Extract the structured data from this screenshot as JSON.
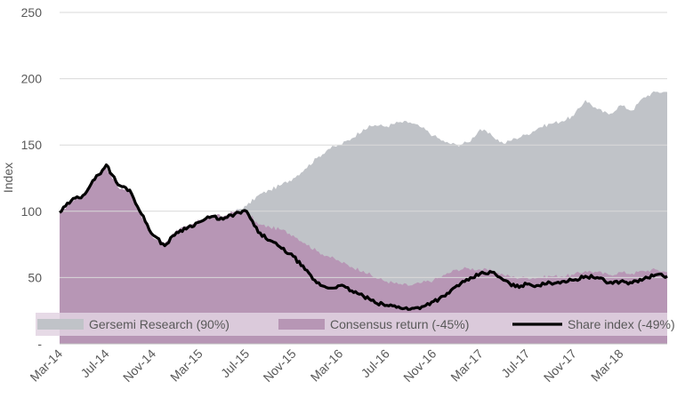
{
  "chart_data": {
    "type": "area",
    "ylabel": "Index",
    "ylim": [
      0,
      250
    ],
    "yticks": [
      "-",
      "50",
      "100",
      "150",
      "200",
      "250"
    ],
    "ytick_values": [
      0,
      50,
      100,
      150,
      200,
      250
    ],
    "xlabels": [
      "Mar-14",
      "Jul-14",
      "Nov-14",
      "Mar-15",
      "Jul-15",
      "Nov-15",
      "Mar-16",
      "Jul-16",
      "Nov-16",
      "Mar-17",
      "Jul-17",
      "Nov-17",
      "Mar-18"
    ],
    "x_start": "2014-03",
    "x_end": "2018-07",
    "grid": true,
    "legend_position": "bottom-overlay",
    "colors": {
      "gersemi": "#c0c3c8",
      "consensus": "#b796b5",
      "share": "#000000",
      "grid": "#d9d9d9",
      "legend_band": "#e2d4e2"
    },
    "series": [
      {
        "name": "Gersemi Research (90%)",
        "kind": "area",
        "color": "#c0c3c8",
        "points": [
          [
            "2014-03",
            98
          ],
          [
            "2014-04",
            108
          ],
          [
            "2014-05",
            112
          ],
          [
            "2014-06",
            125
          ],
          [
            "2014-07",
            133
          ],
          [
            "2014-08",
            118
          ],
          [
            "2014-09",
            115
          ],
          [
            "2014-10",
            96
          ],
          [
            "2014-11",
            80
          ],
          [
            "2014-12",
            76
          ],
          [
            "2015-01",
            86
          ],
          [
            "2015-02",
            88
          ],
          [
            "2015-03",
            93
          ],
          [
            "2015-04",
            97
          ],
          [
            "2015-05",
            96
          ],
          [
            "2015-06",
            100
          ],
          [
            "2015-07",
            104
          ],
          [
            "2015-08",
            112
          ],
          [
            "2015-09",
            116
          ],
          [
            "2015-10",
            120
          ],
          [
            "2015-11",
            125
          ],
          [
            "2015-12",
            132
          ],
          [
            "2016-01",
            140
          ],
          [
            "2016-02",
            147
          ],
          [
            "2016-03",
            150
          ],
          [
            "2016-04",
            155
          ],
          [
            "2016-05",
            162
          ],
          [
            "2016-06",
            165
          ],
          [
            "2016-07",
            164
          ],
          [
            "2016-08",
            167
          ],
          [
            "2016-09",
            167
          ],
          [
            "2016-10",
            163
          ],
          [
            "2016-11",
            157
          ],
          [
            "2016-12",
            152
          ],
          [
            "2017-01",
            150
          ],
          [
            "2017-02",
            152
          ],
          [
            "2017-03",
            162
          ],
          [
            "2017-04",
            157
          ],
          [
            "2017-05",
            151
          ],
          [
            "2017-06",
            155
          ],
          [
            "2017-07",
            158
          ],
          [
            "2017-08",
            163
          ],
          [
            "2017-09",
            166
          ],
          [
            "2017-10",
            168
          ],
          [
            "2017-11",
            172
          ],
          [
            "2017-12",
            184
          ],
          [
            "2018-01",
            177
          ],
          [
            "2018-02",
            173
          ],
          [
            "2018-03",
            180
          ],
          [
            "2018-04",
            176
          ],
          [
            "2018-05",
            186
          ],
          [
            "2018-06",
            190
          ],
          [
            "2018-07",
            190
          ]
        ]
      },
      {
        "name": "Consensus return (-45%)",
        "kind": "area",
        "color": "#b796b5",
        "points": [
          [
            "2014-03",
            98
          ],
          [
            "2014-04",
            108
          ],
          [
            "2014-05",
            112
          ],
          [
            "2014-06",
            125
          ],
          [
            "2014-07",
            133
          ],
          [
            "2014-08",
            118
          ],
          [
            "2014-09",
            115
          ],
          [
            "2014-10",
            96
          ],
          [
            "2014-11",
            80
          ],
          [
            "2014-12",
            76
          ],
          [
            "2015-01",
            86
          ],
          [
            "2015-02",
            88
          ],
          [
            "2015-03",
            93
          ],
          [
            "2015-04",
            97
          ],
          [
            "2015-05",
            96
          ],
          [
            "2015-06",
            100
          ],
          [
            "2015-07",
            100
          ],
          [
            "2015-08",
            90
          ],
          [
            "2015-09",
            88
          ],
          [
            "2015-10",
            86
          ],
          [
            "2015-11",
            82
          ],
          [
            "2015-12",
            76
          ],
          [
            "2016-01",
            70
          ],
          [
            "2016-02",
            66
          ],
          [
            "2016-03",
            62
          ],
          [
            "2016-04",
            58
          ],
          [
            "2016-05",
            55
          ],
          [
            "2016-06",
            50
          ],
          [
            "2016-07",
            47
          ],
          [
            "2016-08",
            45
          ],
          [
            "2016-09",
            44
          ],
          [
            "2016-10",
            46
          ],
          [
            "2016-11",
            48
          ],
          [
            "2016-12",
            52
          ],
          [
            "2017-01",
            56
          ],
          [
            "2017-02",
            57
          ],
          [
            "2017-03",
            56
          ],
          [
            "2017-04",
            55
          ],
          [
            "2017-05",
            52
          ],
          [
            "2017-06",
            50
          ],
          [
            "2017-07",
            50
          ],
          [
            "2017-08",
            50
          ],
          [
            "2017-09",
            51
          ],
          [
            "2017-10",
            51
          ],
          [
            "2017-11",
            52
          ],
          [
            "2017-12",
            55
          ],
          [
            "2018-01",
            54
          ],
          [
            "2018-02",
            52
          ],
          [
            "2018-03",
            54
          ],
          [
            "2018-04",
            53
          ],
          [
            "2018-05",
            55
          ],
          [
            "2018-06",
            56
          ],
          [
            "2018-07",
            54
          ]
        ]
      },
      {
        "name": "Share index (-49%)",
        "kind": "line",
        "color": "#000000",
        "points": [
          [
            "2014-03",
            99
          ],
          [
            "2014-04",
            108
          ],
          [
            "2014-05",
            112
          ],
          [
            "2014-06",
            124
          ],
          [
            "2014-07",
            135
          ],
          [
            "2014-08",
            120
          ],
          [
            "2014-09",
            116
          ],
          [
            "2014-10",
            98
          ],
          [
            "2014-11",
            82
          ],
          [
            "2014-12",
            74
          ],
          [
            "2015-01",
            84
          ],
          [
            "2015-02",
            88
          ],
          [
            "2015-03",
            92
          ],
          [
            "2015-04",
            96
          ],
          [
            "2015-05",
            94
          ],
          [
            "2015-06",
            98
          ],
          [
            "2015-07",
            100
          ],
          [
            "2015-08",
            84
          ],
          [
            "2015-09",
            78
          ],
          [
            "2015-10",
            72
          ],
          [
            "2015-11",
            66
          ],
          [
            "2015-12",
            56
          ],
          [
            "2016-01",
            46
          ],
          [
            "2016-02",
            42
          ],
          [
            "2016-03",
            44
          ],
          [
            "2016-04",
            40
          ],
          [
            "2016-05",
            36
          ],
          [
            "2016-06",
            31
          ],
          [
            "2016-07",
            29
          ],
          [
            "2016-08",
            28
          ],
          [
            "2016-09",
            26
          ],
          [
            "2016-10",
            28
          ],
          [
            "2016-11",
            32
          ],
          [
            "2016-12",
            36
          ],
          [
            "2017-01",
            44
          ],
          [
            "2017-02",
            48
          ],
          [
            "2017-03",
            53
          ],
          [
            "2017-04",
            54
          ],
          [
            "2017-05",
            48
          ],
          [
            "2017-06",
            43
          ],
          [
            "2017-07",
            45
          ],
          [
            "2017-08",
            44
          ],
          [
            "2017-09",
            46
          ],
          [
            "2017-10",
            47
          ],
          [
            "2017-11",
            48
          ],
          [
            "2017-12",
            51
          ],
          [
            "2018-01",
            50
          ],
          [
            "2018-02",
            46
          ],
          [
            "2018-03",
            47
          ],
          [
            "2018-04",
            46
          ],
          [
            "2018-05",
            49
          ],
          [
            "2018-06",
            52
          ],
          [
            "2018-07",
            51
          ]
        ]
      }
    ]
  }
}
